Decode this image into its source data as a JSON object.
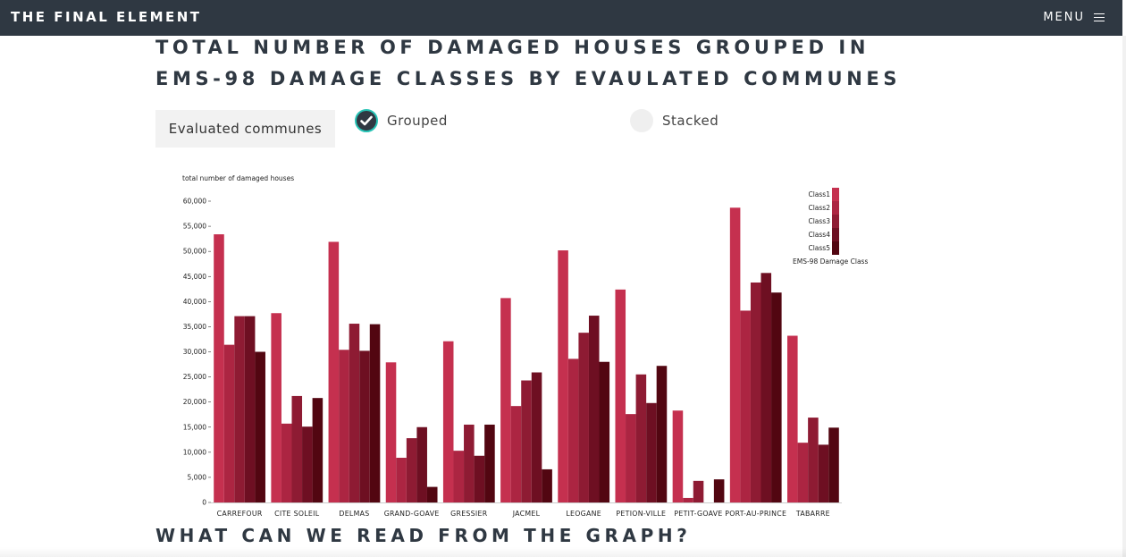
{
  "header": {
    "brand": "THE FINAL ELEMENT",
    "menu_label": "MENU"
  },
  "page": {
    "title": "TOTAL NUMBER OF DAMAGED HOUSES GROUPED IN EMS-98 DAMAGE CLASSES BY EVAULATED COMMUNES",
    "communes_button": "Evaluated communes",
    "grouped_label": "Grouped",
    "stacked_label": "Stacked",
    "section_heading": "WHAT CAN WE READ FROM THE GRAPH?"
  },
  "chart_data": {
    "type": "bar",
    "ylabel": "total number of damaged houses",
    "ylim": [
      0,
      60000
    ],
    "yticks": [
      "0",
      "5,000",
      "10,000",
      "15,000",
      "20,000",
      "25,000",
      "30,000",
      "35,000",
      "40,000",
      "45,000",
      "50,000",
      "55,000",
      "60,000"
    ],
    "categories": [
      "CARREFOUR",
      "CITE SOLEIL",
      "DELMAS",
      "GRAND-GOAVE",
      "GRESSIER",
      "JACMEL",
      "LEOGANE",
      "PETION-VILLE",
      "PETIT-GOAVE",
      "PORT-AU-PRINCE",
      "TABARRE"
    ],
    "legend_title": "EMS-98 Damage Class",
    "legend_position": "top-right",
    "series": [
      {
        "name": "Class1",
        "color": "#c5304f",
        "values": [
          53400,
          37700,
          51900,
          27900,
          32100,
          40700,
          50200,
          42400,
          18300,
          58700,
          33200
        ]
      },
      {
        "name": "Class2",
        "color": "#ac2542",
        "values": [
          31400,
          15700,
          30400,
          8900,
          10300,
          19200,
          28600,
          17600,
          900,
          38200,
          11900
        ]
      },
      {
        "name": "Class3",
        "color": "#8e1b33",
        "values": [
          37100,
          21200,
          35600,
          12800,
          15500,
          24300,
          33800,
          25500,
          4300,
          43800,
          16900
        ]
      },
      {
        "name": "Class4",
        "color": "#6e0f22",
        "values": [
          37100,
          15100,
          30200,
          15000,
          9300,
          25900,
          37200,
          19800,
          0,
          45700,
          11500
        ]
      },
      {
        "name": "Class5",
        "color": "#520611",
        "values": [
          30000,
          20800,
          35500,
          3100,
          15500,
          6600,
          28000,
          27200,
          4600,
          41800,
          14900
        ]
      }
    ]
  }
}
